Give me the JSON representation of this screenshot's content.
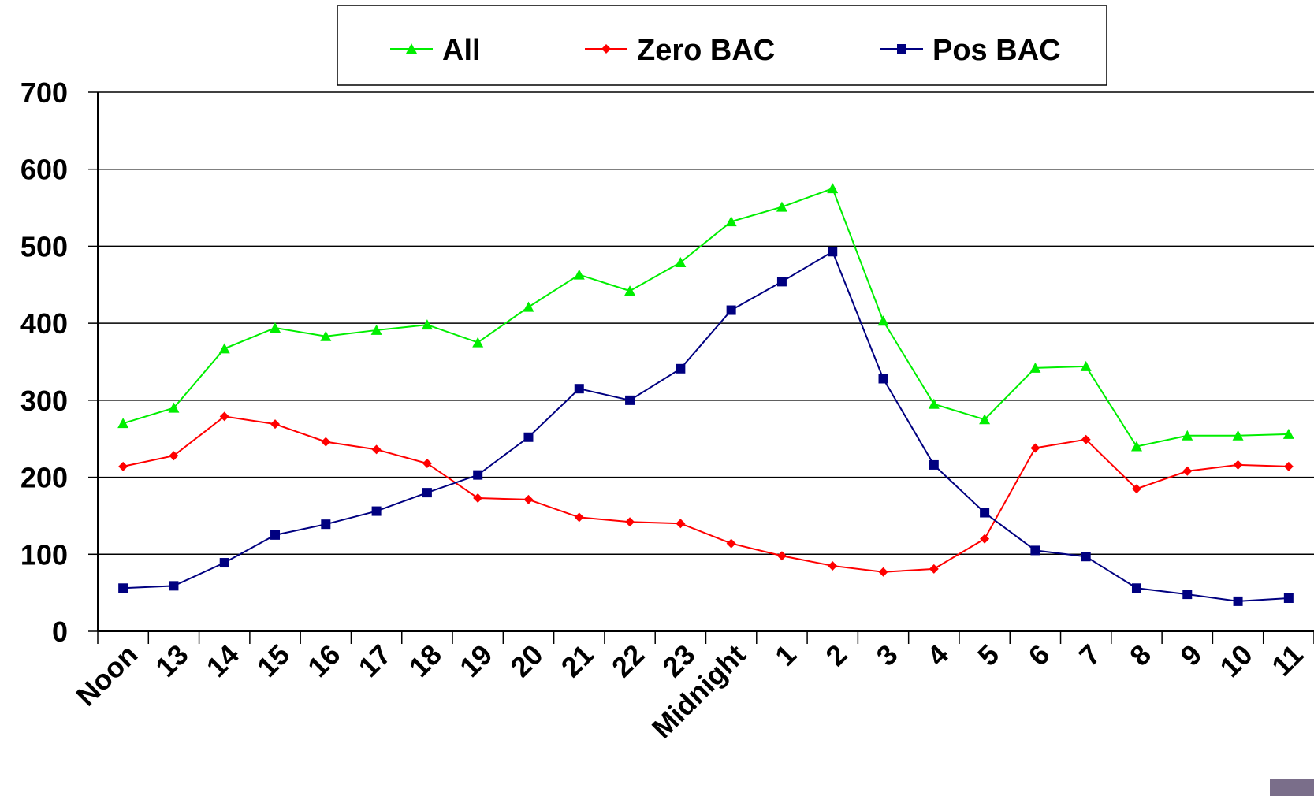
{
  "chart_data": {
    "type": "line",
    "categories": [
      "Noon",
      "13",
      "14",
      "15",
      "16",
      "17",
      "18",
      "19",
      "20",
      "21",
      "22",
      "23",
      "Midnight",
      "1",
      "2",
      "3",
      "4",
      "5",
      "6",
      "7",
      "8",
      "9",
      "10",
      "11"
    ],
    "ylim": [
      0,
      700
    ],
    "yticks": [
      0,
      100,
      200,
      300,
      400,
      500,
      600,
      700
    ],
    "grid": true,
    "legend_position": "top",
    "series": [
      {
        "name": "All",
        "color": "#00ee00",
        "marker": "triangle",
        "values": [
          270,
          290,
          367,
          394,
          383,
          391,
          398,
          375,
          421,
          463,
          442,
          479,
          532,
          551,
          575,
          403,
          295,
          275,
          342,
          344,
          240,
          254,
          254,
          256
        ]
      },
      {
        "name": "Zero BAC",
        "color": "#ff0000",
        "marker": "diamond",
        "values": [
          214,
          228,
          279,
          269,
          246,
          236,
          218,
          173,
          171,
          148,
          142,
          140,
          114,
          98,
          85,
          77,
          81,
          120,
          238,
          249,
          185,
          208,
          216,
          214
        ]
      },
      {
        "name": "Pos BAC",
        "color": "#000080",
        "marker": "square",
        "values": [
          56,
          59,
          89,
          125,
          139,
          156,
          180,
          203,
          252,
          315,
          300,
          341,
          417,
          454,
          493,
          328,
          216,
          154,
          105,
          97,
          56,
          48,
          39,
          43
        ]
      }
    ]
  }
}
